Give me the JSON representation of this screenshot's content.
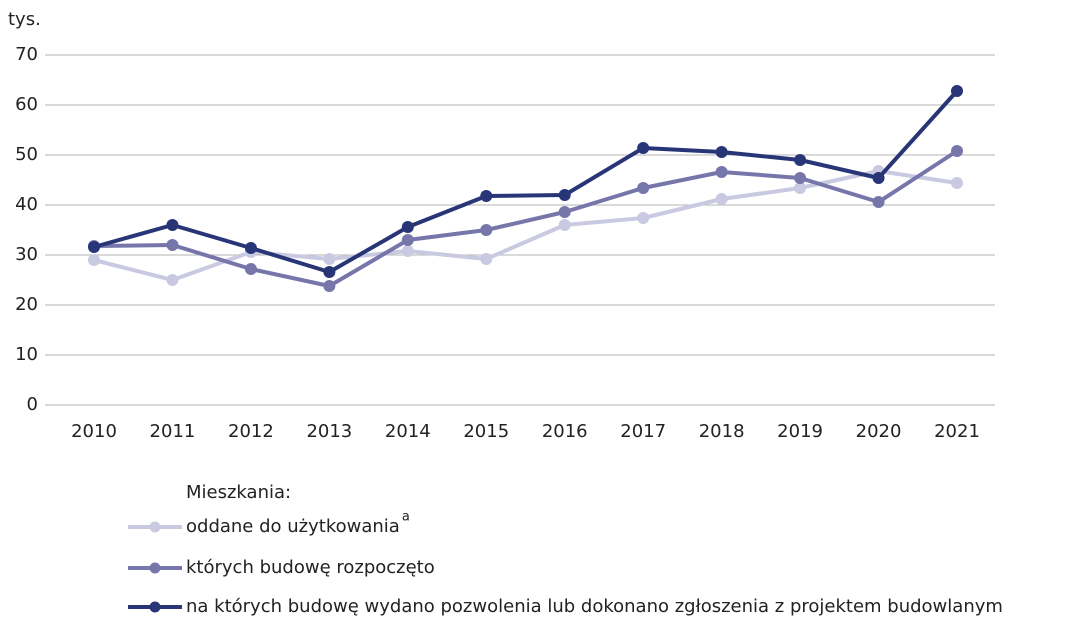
{
  "chart_data": {
    "type": "line",
    "y_unit_label": "tys.",
    "categories": [
      "2010",
      "2011",
      "2012",
      "2013",
      "2014",
      "2015",
      "2016",
      "2017",
      "2018",
      "2019",
      "2020",
      "2021"
    ],
    "ylim": [
      0,
      70
    ],
    "yticks": [
      0,
      10,
      20,
      30,
      40,
      50,
      60,
      70
    ],
    "grid": true,
    "legend_title": "Mieszkania:",
    "series": [
      {
        "name": "oddane do użytkowania",
        "name_superscript": "a",
        "color": "#c9c9e1",
        "values": [
          29,
          25,
          30.6,
          29.2,
          30.8,
          29.2,
          36,
          37.4,
          41.2,
          43.4,
          46.8,
          44.4
        ]
      },
      {
        "name": "których budowę rozpoczęto",
        "color": "#7676ab",
        "values": [
          31.8,
          32,
          27.2,
          23.8,
          33,
          35,
          38.6,
          43.4,
          46.6,
          45.4,
          40.6,
          50.8
        ]
      },
      {
        "name": "na których budowę wydano pozwolenia lub dokonano zgłoszenia z projektem budowlanym",
        "color": "#283576",
        "values": [
          31.6,
          36,
          31.4,
          26.6,
          35.6,
          41.8,
          42,
          51.4,
          50.6,
          49,
          45.4,
          62.8
        ]
      }
    ]
  }
}
